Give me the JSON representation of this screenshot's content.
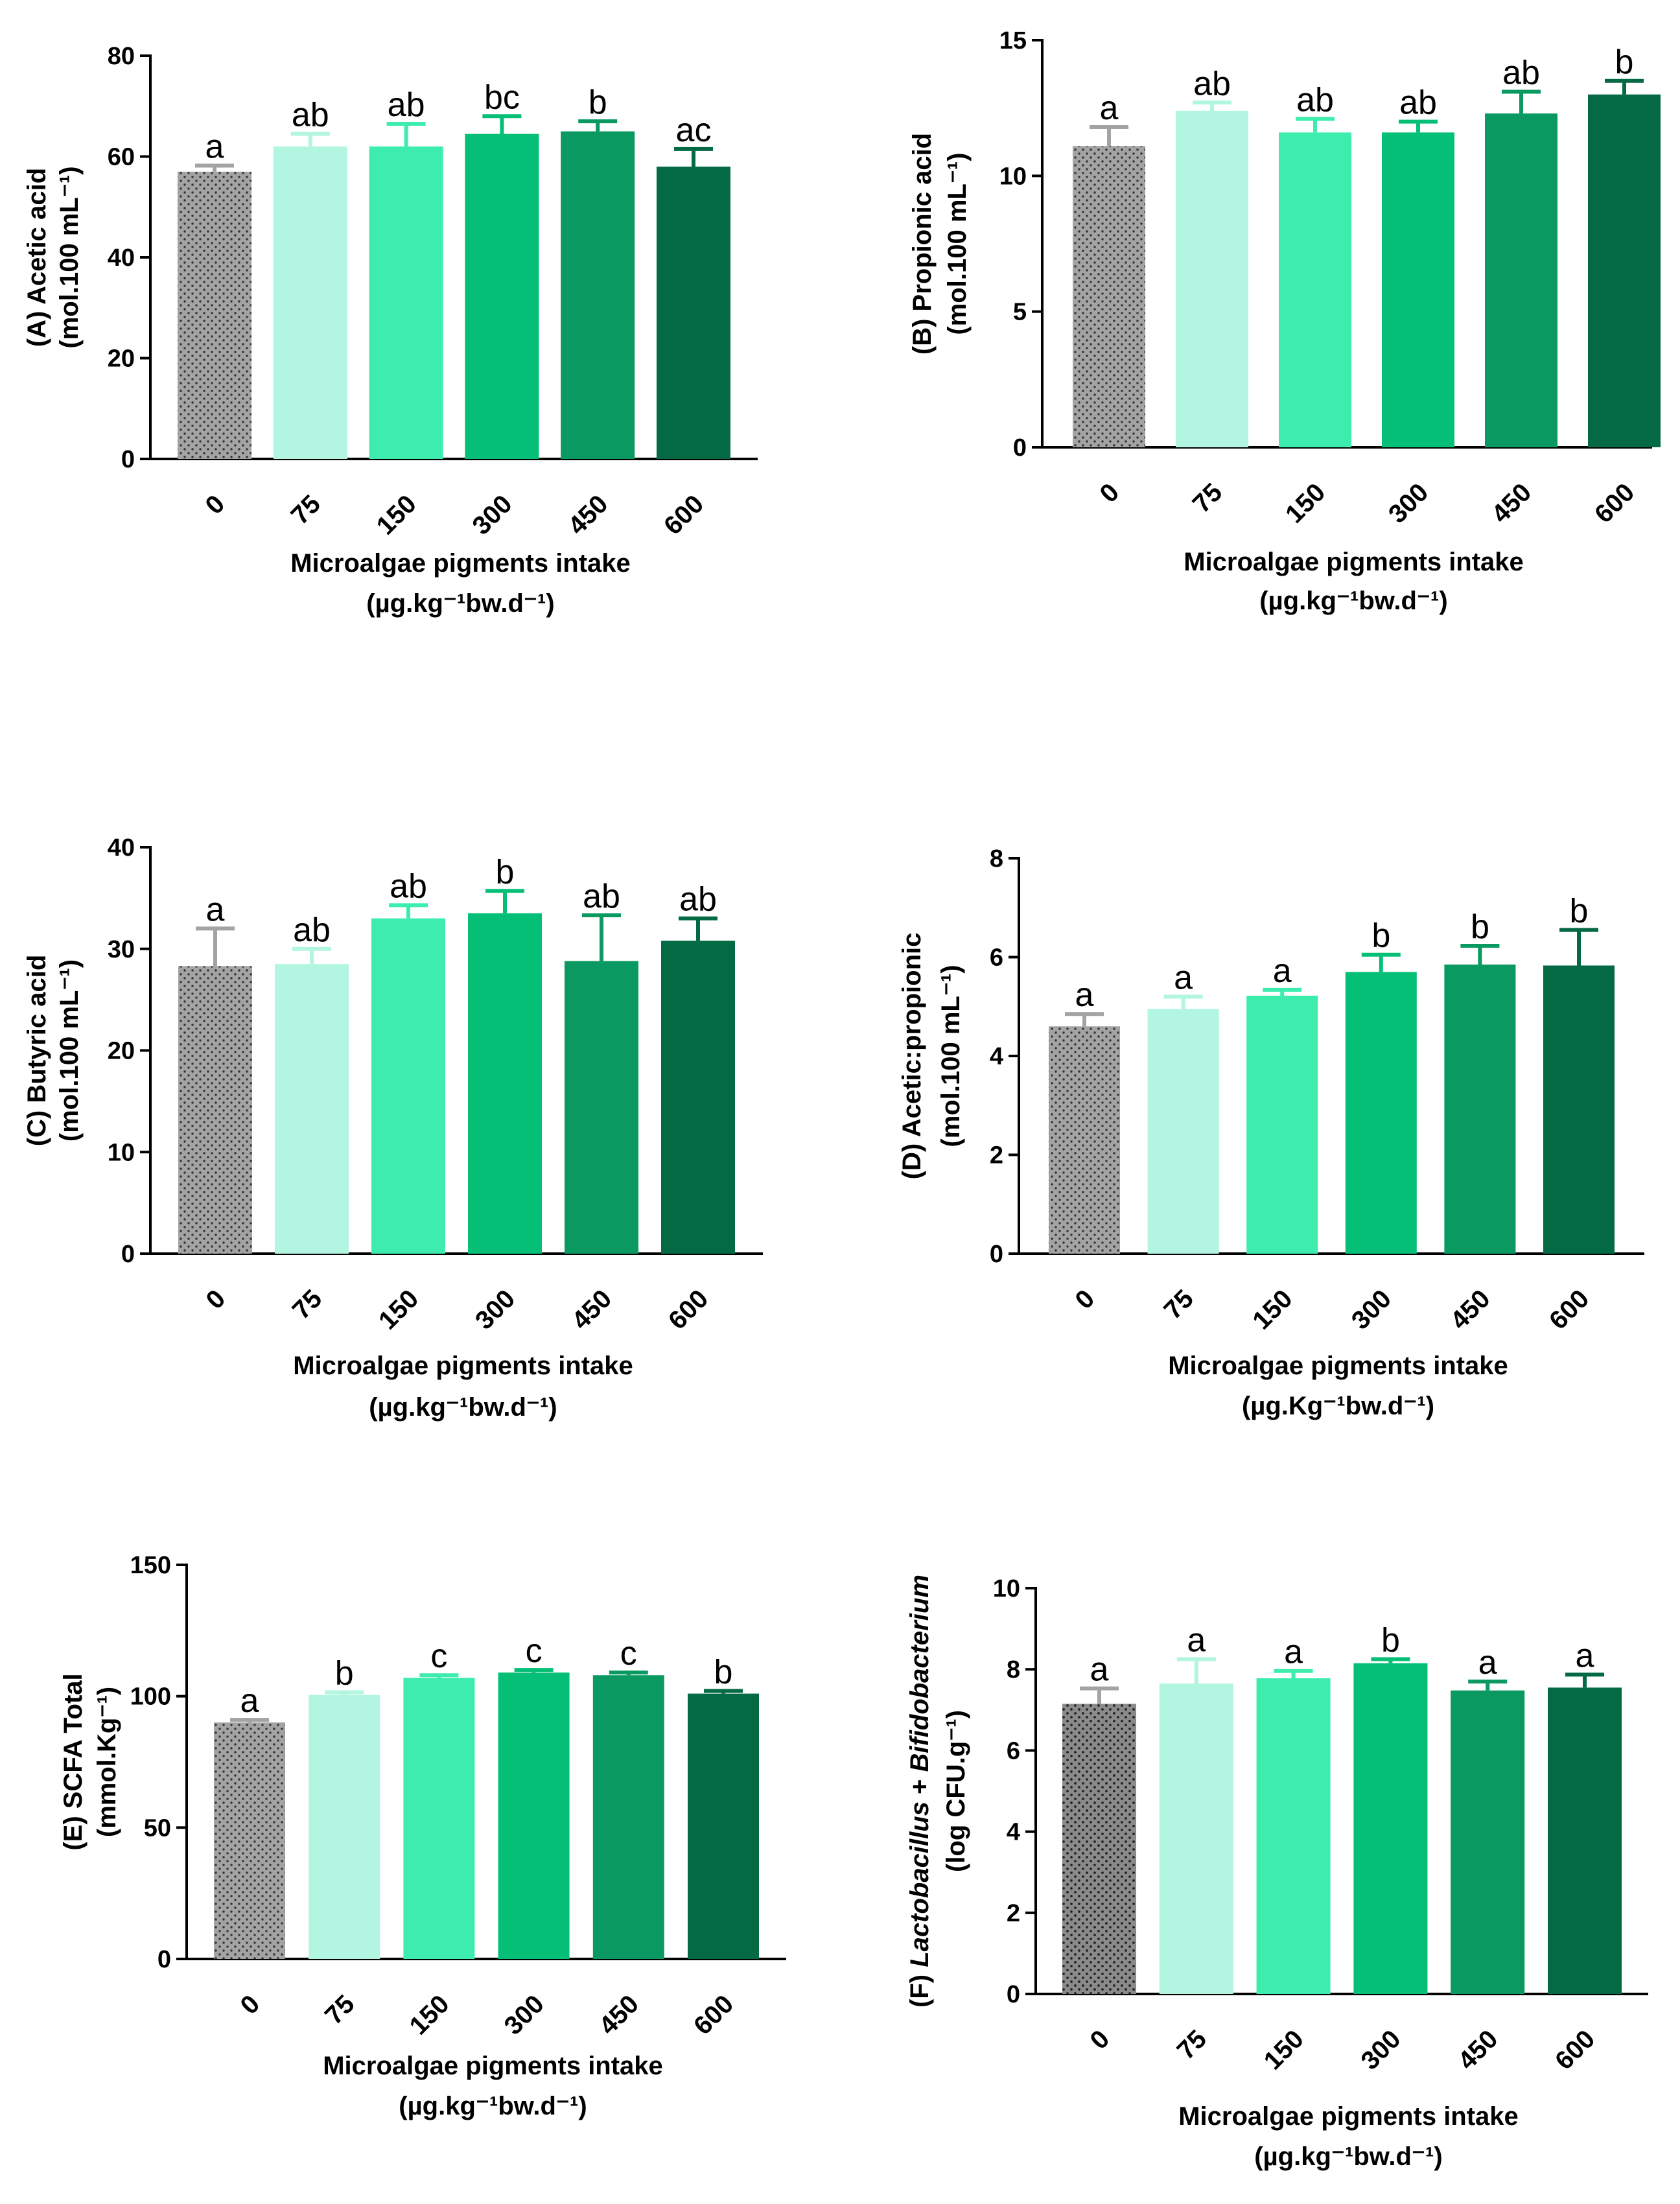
{
  "xaxis": {
    "categories": [
      "0",
      "75",
      "150",
      "300",
      "450",
      "600"
    ],
    "title": "Microalgae pigments intake"
  },
  "series_colors": [
    "#A3A3A3",
    "#B2F5E0",
    "#3DEDAE",
    "#06BF76",
    "#0A9A61",
    "#046A44"
  ],
  "chart_data": [
    {
      "type": "bar",
      "panel": "A",
      "title": "",
      "ylabel_main": "(A) Acetic acid",
      "ylabel_unit": "(mol.100 mL⁻¹)",
      "xlabel": "Microalgae pigments intake",
      "xlabel_unit": "(µg.kg⁻¹bw.d⁻¹)",
      "categories": [
        "0",
        "75",
        "150",
        "300",
        "450",
        "600"
      ],
      "values": [
        57,
        62,
        62,
        64.5,
        65,
        58
      ],
      "errors": [
        1.2,
        2.5,
        4.5,
        3.5,
        2,
        3.5
      ],
      "letters": [
        "a",
        "ab",
        "ab",
        "bc",
        "b",
        "ac"
      ],
      "ylim": [
        0,
        80
      ],
      "yticks": [
        0,
        20,
        40,
        60,
        80
      ],
      "grid": false
    },
    {
      "type": "bar",
      "panel": "B",
      "title": "",
      "ylabel_main": "(B) Propionic acid",
      "ylabel_unit": "(mol.100 mL⁻¹)",
      "xlabel": "Microalgae pigments intake",
      "xlabel_unit": "(µg.kg⁻¹bw.d⁻¹)",
      "categories": [
        "0",
        "75",
        "150",
        "300",
        "450",
        "600"
      ],
      "values": [
        11.1,
        12.4,
        11.6,
        11.6,
        12.3,
        13
      ],
      "errors": [
        0.7,
        0.3,
        0.5,
        0.4,
        0.8,
        0.5
      ],
      "letters": [
        "a",
        "ab",
        "ab",
        "ab",
        "ab",
        "b"
      ],
      "ylim": [
        0,
        15
      ],
      "yticks": [
        0,
        5,
        10,
        15
      ],
      "grid": false
    },
    {
      "type": "bar",
      "panel": "C",
      "title": "",
      "ylabel_main": "(C) Butyric acid",
      "ylabel_unit": "(mol.100 mL⁻¹)",
      "xlabel": "Microalgae pigments intake",
      "xlabel_unit": "(µg.kg⁻¹bw.d⁻¹)",
      "categories": [
        "0",
        "75",
        "150",
        "300",
        "450",
        "600"
      ],
      "values": [
        28.3,
        28.5,
        33,
        33.5,
        28.8,
        30.8
      ],
      "errors": [
        3.7,
        1.5,
        1.3,
        2.2,
        4.5,
        2.2
      ],
      "letters": [
        "a",
        "ab",
        "ab",
        "b",
        "ab",
        "ab"
      ],
      "ylim": [
        0,
        40
      ],
      "yticks": [
        0,
        10,
        20,
        30,
        40
      ],
      "grid": false
    },
    {
      "type": "bar",
      "panel": "D",
      "title": "",
      "ylabel_main": "(D) Acetic:propionic",
      "ylabel_unit": "(mol.100 mL⁻¹)",
      "xlabel": "Microalgae pigments intake",
      "xlabel_unit": "(µg.Kg⁻¹bw.d⁻¹)",
      "categories": [
        "0",
        "75",
        "150",
        "300",
        "450",
        "600"
      ],
      "values": [
        4.6,
        4.95,
        5.22,
        5.7,
        5.85,
        5.83
      ],
      "errors": [
        0.25,
        0.25,
        0.12,
        0.35,
        0.38,
        0.72
      ],
      "letters": [
        "a",
        "a",
        "a",
        "b",
        "b",
        "b"
      ],
      "ylim": [
        0,
        8
      ],
      "yticks": [
        0,
        2,
        4,
        6,
        8
      ],
      "grid": false
    },
    {
      "type": "bar",
      "panel": "E",
      "title": "",
      "ylabel_main": "(E) SCFA Total",
      "ylabel_unit": "(mmol.Kg⁻¹)",
      "xlabel": "Microalgae pigments intake",
      "xlabel_unit": "(µg.kg⁻¹bw.d⁻¹)",
      "categories": [
        "0",
        "75",
        "150",
        "300",
        "450",
        "600"
      ],
      "values": [
        90,
        100.5,
        107,
        109,
        108,
        101
      ],
      "errors": [
        1,
        1,
        1,
        1,
        1,
        1
      ],
      "letters": [
        "a",
        "b",
        "c",
        "c",
        "c",
        "b"
      ],
      "ylim": [
        0,
        150
      ],
      "yticks": [
        0,
        50,
        100,
        150
      ],
      "grid": false
    },
    {
      "type": "bar",
      "panel": "F",
      "title": "",
      "ylabel_main": "(F) Lactobacillus + Bifidobacterium",
      "ylabel_main_prefix": "(F) ",
      "ylabel_italic_1": "Lactobacillus",
      "ylabel_joiner": " + ",
      "ylabel_italic_2": "Bifidobacterium",
      "ylabel_unit": "(log CFU.g⁻¹)",
      "xlabel": "Microalgae pigments intake",
      "xlabel_unit": "(µg.kg⁻¹bw.d⁻¹)",
      "categories": [
        "0",
        "75",
        "150",
        "300",
        "450",
        "600"
      ],
      "values": [
        7.15,
        7.65,
        7.78,
        8.15,
        7.48,
        7.55
      ],
      "errors": [
        0.38,
        0.6,
        0.18,
        0.1,
        0.22,
        0.32
      ],
      "letters": [
        "a",
        "a",
        "a",
        "b",
        "a",
        "a"
      ],
      "ylim": [
        0,
        10
      ],
      "yticks": [
        0,
        2,
        4,
        6,
        8,
        10
      ],
      "grid": false
    }
  ]
}
